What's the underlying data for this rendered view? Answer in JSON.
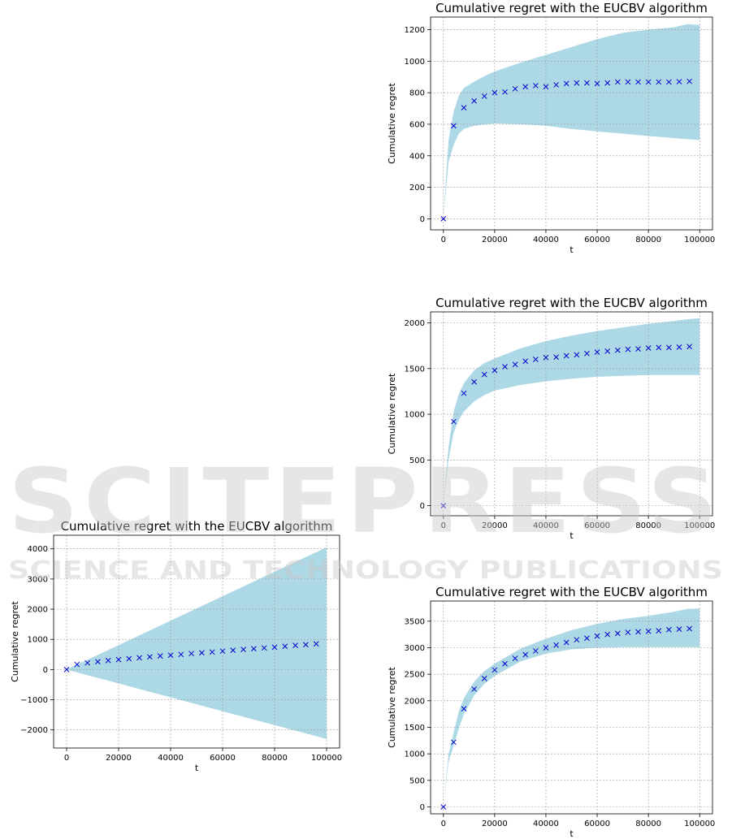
{
  "watermark": {
    "main": "SCITEPRESS",
    "sub": "SCIENCE AND TECHNOLOGY PUBLICATIONS"
  },
  "chart_data": [
    {
      "type": "scatter",
      "title": "Cumulative regret with the EUCBV algorithm",
      "xlabel": "t",
      "ylabel": "Cumulative regret",
      "xlim": [
        -5000,
        105000
      ],
      "ylim": [
        -70,
        1280
      ],
      "xticks": [
        0,
        20000,
        40000,
        60000,
        80000,
        100000
      ],
      "yticks": [
        0,
        200,
        400,
        600,
        800,
        1000,
        1200
      ],
      "grid": true,
      "colors": {
        "points": "#0000cc",
        "band": "#add8e6"
      },
      "x": [
        0,
        4000,
        8000,
        12000,
        16000,
        20000,
        24000,
        28000,
        32000,
        36000,
        40000,
        44000,
        48000,
        52000,
        56000,
        60000,
        64000,
        68000,
        72000,
        76000,
        80000,
        84000,
        88000,
        92000,
        96000
      ],
      "values": [
        0,
        590,
        705,
        748,
        778,
        800,
        805,
        825,
        838,
        845,
        838,
        850,
        858,
        862,
        862,
        858,
        862,
        868,
        868,
        868,
        868,
        868,
        868,
        870,
        872
      ],
      "band": {
        "x": [
          0,
          2000,
          4000,
          6000,
          8000,
          12000,
          16000,
          20000,
          30000,
          40000,
          50000,
          60000,
          70000,
          80000,
          90000,
          95000,
          100000
        ],
        "lower": [
          0,
          360,
          470,
          540,
          570,
          590,
          598,
          605,
          600,
          590,
          570,
          555,
          540,
          525,
          512,
          505,
          500
        ],
        "upper": [
          0,
          500,
          680,
          780,
          830,
          870,
          905,
          935,
          990,
          1040,
          1090,
          1140,
          1180,
          1200,
          1215,
          1235,
          1230
        ]
      }
    },
    {
      "type": "scatter",
      "title": "Cumulative regret with the EUCBV algorithm",
      "xlabel": "t",
      "ylabel": "Cumulative regret",
      "xlim": [
        -5000,
        105000
      ],
      "ylim": [
        -110,
        2120
      ],
      "xticks": [
        0,
        20000,
        40000,
        60000,
        80000,
        100000
      ],
      "yticks": [
        0,
        500,
        1000,
        1500,
        2000
      ],
      "grid": true,
      "colors": {
        "points": "#0000cc",
        "band": "#add8e6"
      },
      "x": [
        0,
        4000,
        8000,
        12000,
        16000,
        20000,
        24000,
        28000,
        32000,
        36000,
        40000,
        44000,
        48000,
        52000,
        56000,
        60000,
        64000,
        68000,
        72000,
        76000,
        80000,
        84000,
        88000,
        92000,
        96000
      ],
      "values": [
        0,
        920,
        1230,
        1355,
        1435,
        1480,
        1520,
        1545,
        1580,
        1600,
        1620,
        1625,
        1640,
        1650,
        1665,
        1680,
        1690,
        1700,
        1710,
        1715,
        1725,
        1730,
        1730,
        1735,
        1740
      ],
      "band": {
        "x": [
          0,
          2000,
          4000,
          6000,
          8000,
          12000,
          16000,
          20000,
          30000,
          40000,
          50000,
          60000,
          70000,
          80000,
          90000,
          95000,
          100000
        ],
        "lower": [
          0,
          500,
          800,
          940,
          1030,
          1140,
          1210,
          1260,
          1320,
          1360,
          1390,
          1410,
          1420,
          1430,
          1430,
          1430,
          1430
        ],
        "upper": [
          0,
          640,
          1030,
          1220,
          1340,
          1480,
          1560,
          1610,
          1720,
          1800,
          1860,
          1910,
          1950,
          1990,
          2020,
          2040,
          2050
        ]
      }
    },
    {
      "type": "scatter",
      "title": "Cumulative regret with the EUCBV algorithm",
      "xlabel": "t",
      "ylabel": "Cumulative regret",
      "xlim": [
        -5000,
        105000
      ],
      "ylim": [
        -2600,
        4450
      ],
      "xticks": [
        0,
        20000,
        40000,
        60000,
        80000,
        100000
      ],
      "yticks": [
        -2000,
        -1000,
        0,
        1000,
        2000,
        3000,
        4000
      ],
      "grid": true,
      "colors": {
        "points": "#0000cc",
        "band": "#add8e6"
      },
      "x": [
        0,
        4000,
        8000,
        12000,
        16000,
        20000,
        24000,
        28000,
        32000,
        36000,
        40000,
        44000,
        48000,
        52000,
        56000,
        60000,
        64000,
        68000,
        72000,
        76000,
        80000,
        84000,
        88000,
        92000,
        96000
      ],
      "values": [
        0,
        170,
        220,
        260,
        300,
        330,
        360,
        390,
        420,
        450,
        475,
        500,
        530,
        555,
        580,
        610,
        640,
        665,
        690,
        715,
        740,
        770,
        800,
        825,
        850
      ],
      "band": {
        "x": [
          0,
          100000
        ],
        "lower": [
          0,
          -2300
        ],
        "upper": [
          0,
          4050
        ]
      }
    },
    {
      "type": "scatter",
      "title": "Cumulative regret with the EUCBV algorithm",
      "xlabel": "t",
      "ylabel": "Cumulative regret",
      "xlim": [
        -5000,
        105000
      ],
      "ylim": [
        -130,
        3880
      ],
      "xticks": [
        0,
        20000,
        40000,
        60000,
        80000,
        100000
      ],
      "yticks": [
        0,
        500,
        1000,
        1500,
        2000,
        2500,
        3000,
        3500
      ],
      "grid": true,
      "colors": {
        "points": "#0000cc",
        "band": "#add8e6"
      },
      "x": [
        0,
        4000,
        8000,
        12000,
        16000,
        20000,
        24000,
        28000,
        32000,
        36000,
        40000,
        44000,
        48000,
        52000,
        56000,
        60000,
        64000,
        68000,
        72000,
        76000,
        80000,
        84000,
        88000,
        92000,
        96000
      ],
      "values": [
        0,
        1220,
        1850,
        2220,
        2420,
        2580,
        2700,
        2800,
        2870,
        2940,
        3000,
        3050,
        3100,
        3150,
        3180,
        3220,
        3250,
        3270,
        3290,
        3300,
        3310,
        3320,
        3340,
        3350,
        3360
      ],
      "band": {
        "x": [
          0,
          2000,
          4000,
          6000,
          8000,
          12000,
          16000,
          20000,
          30000,
          40000,
          50000,
          60000,
          70000,
          80000,
          90000,
          95000,
          100000
        ],
        "lower": [
          0,
          850,
          1150,
          1480,
          1750,
          2100,
          2320,
          2470,
          2740,
          2890,
          2970,
          3000,
          3010,
          3010,
          3010,
          3010,
          3010
        ],
        "upper": [
          0,
          1000,
          1400,
          1800,
          2050,
          2360,
          2560,
          2700,
          2980,
          3170,
          3330,
          3450,
          3540,
          3600,
          3680,
          3730,
          3740
        ]
      }
    }
  ]
}
